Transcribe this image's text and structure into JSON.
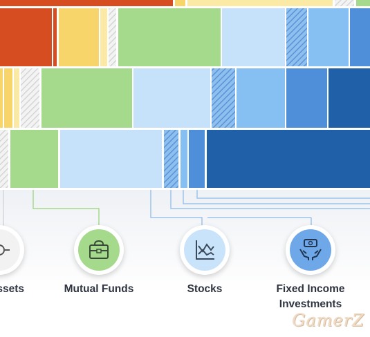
{
  "categories": [
    {
      "label": "Assets",
      "shown_label": "ssets",
      "icon": "assets-icon",
      "color": "#f2f2f2"
    },
    {
      "label": "Mutual Funds",
      "icon": "briefcase-icon",
      "color": "#a5d98c"
    },
    {
      "label": "Stocks",
      "icon": "stock-chart-icon",
      "color": "#c9e3fb"
    },
    {
      "label_line1": "Fixed Income",
      "label_line2": "Investments",
      "icon": "money-hands-icon",
      "color": "#6ea8e8"
    }
  ],
  "watermark": "GamerZ",
  "colors": {
    "red": "#d64d22",
    "yellow": "#f7d56a",
    "light_yellow": "#fbe9a6",
    "green": "#a5d98c",
    "pale_blue": "#c6e2fa",
    "sky_blue": "#86c0f2",
    "mid_blue": "#4f8fd9",
    "dark_blue": "#2060a8",
    "hatched_gray": "#d9d9d9",
    "line_blue": "#9cc4ea",
    "line_green": "#a5d98c"
  }
}
